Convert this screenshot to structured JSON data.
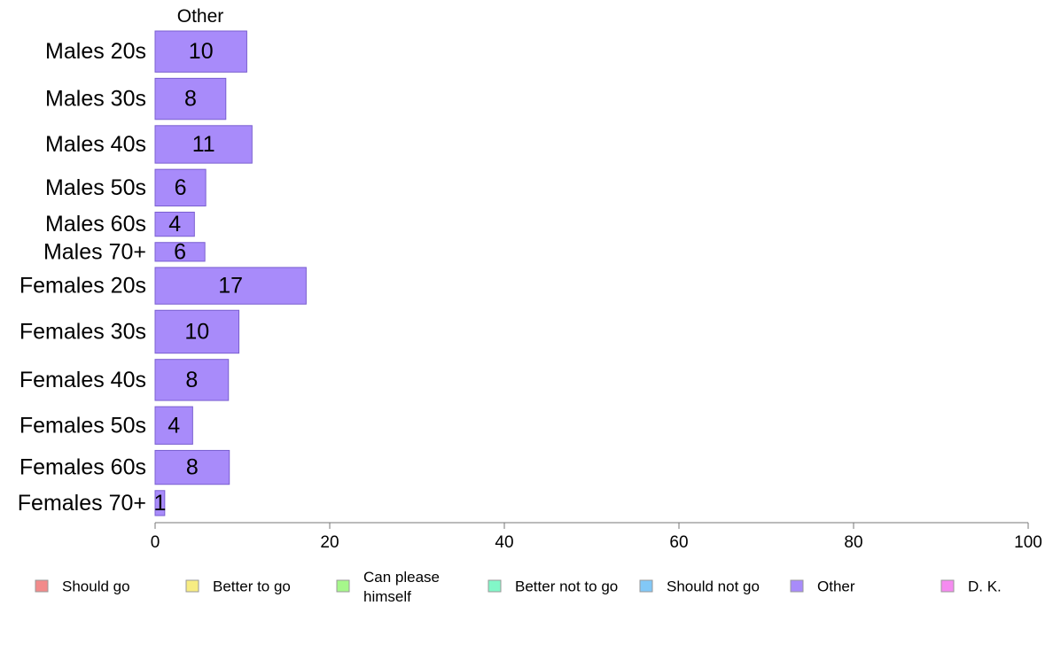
{
  "chart_data": {
    "type": "bar",
    "orientation": "horizontal",
    "panel_title": "Other",
    "categories": [
      "Males 20s",
      "Males 30s",
      "Males 40s",
      "Males 50s",
      "Males 60s",
      "Males 70+",
      "Females 20s",
      "Females 30s",
      "Females 40s",
      "Females 50s",
      "Females 60s",
      "Females 70+"
    ],
    "values": [
      10,
      8,
      11,
      6,
      4,
      6,
      17,
      10,
      8,
      4,
      8,
      1
    ],
    "plotted_values": [
      10.5,
      8.1,
      11.1,
      5.8,
      4.5,
      5.7,
      17.3,
      9.6,
      8.4,
      4.3,
      8.5,
      1.1
    ],
    "relative_weights": [
      46,
      46,
      42,
      41,
      27,
      21,
      41,
      48,
      46,
      42,
      38,
      28
    ],
    "xlim": [
      0,
      100
    ],
    "xticks": [
      0,
      20,
      40,
      60,
      80,
      100
    ],
    "legend": [
      {
        "label": "Should go",
        "color": "#f28b8b"
      },
      {
        "label": "Better to go",
        "color": "#f7ec82"
      },
      {
        "label": "Can please himself",
        "color": "#a6f78b"
      },
      {
        "label": "Better not to go",
        "color": "#82f7c8"
      },
      {
        "label": "Should not go",
        "color": "#82c8f7"
      },
      {
        "label": "Other",
        "color": "#a88bfa"
      },
      {
        "label": "D. K.",
        "color": "#f58bf0"
      }
    ],
    "bar_color": "#a88bfa",
    "bar_stroke": "#7a5fd0",
    "legend_placement": "bottom",
    "grid": false
  }
}
